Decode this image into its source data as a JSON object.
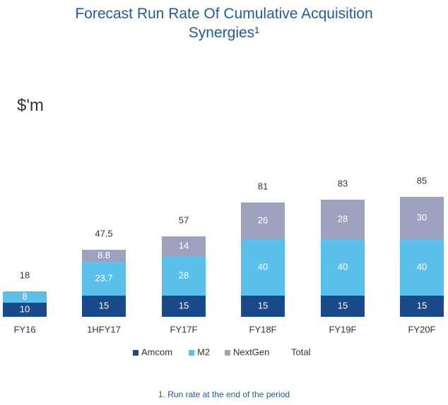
{
  "title_line1": "Forecast Run Rate Of Cumulative Acquisition",
  "title_line2": "Synergies¹",
  "footnote": "1. Run rate at the end of the period",
  "chart_data": {
    "type": "bar",
    "stacked": true,
    "title": "Forecast Run Rate Of Cumulative Acquisition Synergies¹",
    "ylabel": "$'m",
    "categories": [
      "FY16",
      "1HFY17",
      "FY17F",
      "FY18F",
      "FY19F",
      "FY20F"
    ],
    "series": [
      {
        "name": "Amcom",
        "color": "#1a4a8c",
        "values": [
          10,
          15,
          15,
          15,
          15,
          15
        ]
      },
      {
        "name": "M2",
        "color": "#5bc0eb",
        "values": [
          8,
          23.7,
          28,
          40,
          40,
          40
        ]
      },
      {
        "name": "NextGen",
        "color": "#9da3bf",
        "values": [
          null,
          8.8,
          14,
          26,
          28,
          30
        ]
      }
    ],
    "totals_name": "Total",
    "totals": [
      18,
      47.5,
      57,
      81,
      83,
      85
    ],
    "legend_position": "bottom",
    "grid": false
  }
}
